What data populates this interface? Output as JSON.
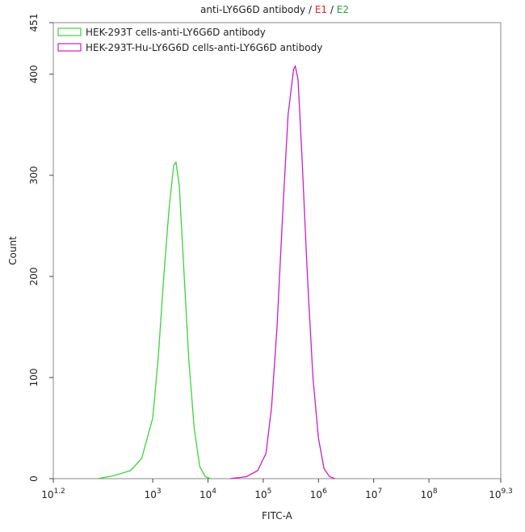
{
  "chart_data": {
    "type": "line",
    "title": "anti-LY6G6D antibody",
    "title_separator": "/",
    "title_markers": [
      {
        "text": "E1",
        "color": "#d42a2a"
      },
      {
        "text": "E2",
        "color": "#2f9a48"
      }
    ],
    "x_label": "FITC-A",
    "y_label": "Count",
    "tick_base": "10",
    "xlim": [
      1.2,
      9.3
    ],
    "xticks": [
      1.2,
      3,
      4,
      5,
      6,
      7,
      8,
      9.3
    ],
    "ylim": [
      0,
      451
    ],
    "yticks": [
      0,
      100,
      200,
      300,
      400,
      451
    ],
    "series": [
      {
        "name": "HEK-293T cells-anti-LY6G6D antibody",
        "color": "#3fd13f",
        "x": [
          2.0,
          2.3,
          2.6,
          2.8,
          3.0,
          3.1,
          3.2,
          3.3,
          3.38,
          3.42,
          3.48,
          3.55,
          3.65,
          3.75,
          3.85,
          3.95,
          4.05
        ],
        "values": [
          0,
          3,
          8,
          20,
          60,
          120,
          200,
          270,
          310,
          313,
          290,
          220,
          120,
          50,
          12,
          2,
          0
        ]
      },
      {
        "name": "HEK-293T-Hu-LY6G6D cells-anti-LY6G6D antibody",
        "color": "#c81ec8",
        "x": [
          4.4,
          4.7,
          4.9,
          5.05,
          5.15,
          5.25,
          5.35,
          5.45,
          5.55,
          5.58,
          5.63,
          5.7,
          5.8,
          5.9,
          6.0,
          6.1,
          6.2,
          6.3
        ],
        "values": [
          0,
          2,
          8,
          25,
          70,
          150,
          260,
          360,
          405,
          408,
          395,
          320,
          200,
          100,
          40,
          10,
          2,
          0
        ]
      }
    ]
  }
}
